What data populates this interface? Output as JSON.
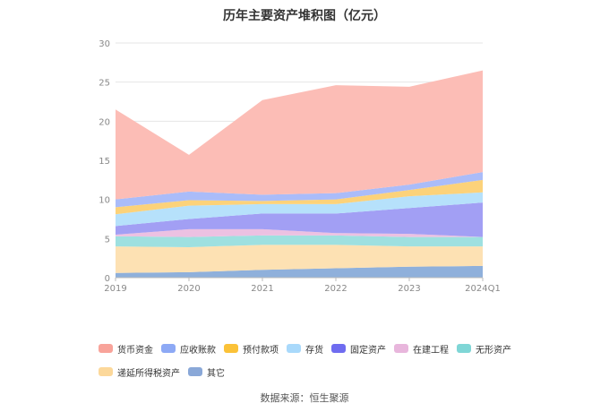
{
  "chart_data": {
    "type": "area",
    "stacked": true,
    "title": "历年主要资产堆积图（亿元）",
    "categories": [
      "2019",
      "2020",
      "2021",
      "2022",
      "2023",
      "2024Q1"
    ],
    "ylim": [
      0,
      30
    ],
    "yticks": [
      0,
      5,
      10,
      15,
      20,
      25,
      30
    ],
    "grid": true,
    "legend_position": "bottom",
    "series": [
      {
        "name": "其它",
        "color": "#8fb0db",
        "values": [
          0.6,
          0.7,
          1.0,
          1.2,
          1.4,
          1.5
        ]
      },
      {
        "name": "递延所得税资产",
        "color": "#fde1b3",
        "values": [
          3.4,
          3.2,
          3.2,
          3.0,
          2.6,
          2.5
        ]
      },
      {
        "name": "无形资产",
        "color": "#9ee0e0",
        "values": [
          1.3,
          1.3,
          1.2,
          1.2,
          1.2,
          1.2
        ]
      },
      {
        "name": "在建工程",
        "color": "#ecc1e2",
        "values": [
          0.2,
          1.0,
          0.8,
          0.3,
          0.4,
          0.0
        ]
      },
      {
        "name": "固定资产",
        "color": "#a29ff4",
        "values": [
          1.1,
          1.3,
          2.0,
          2.5,
          3.3,
          4.4
        ]
      },
      {
        "name": "存货",
        "color": "#b6e1fb",
        "values": [
          1.5,
          1.7,
          1.2,
          1.2,
          1.5,
          1.3
        ]
      },
      {
        "name": "预付款项",
        "color": "#fcd27a",
        "values": [
          0.9,
          0.7,
          0.4,
          0.6,
          0.8,
          1.6
        ]
      },
      {
        "name": "应收账款",
        "color": "#aabcf9",
        "values": [
          1.0,
          1.1,
          0.8,
          0.8,
          0.7,
          1.0
        ]
      },
      {
        "name": "货币资金",
        "color": "#fcbdb6",
        "values": [
          11.5,
          4.7,
          12.1,
          13.8,
          12.5,
          13.0
        ]
      }
    ]
  },
  "legend_order": [
    "货币资金",
    "应收账款",
    "预付款项",
    "存货",
    "固定资产",
    "在建工程",
    "无形资产",
    "递延所得税资产",
    "其它"
  ],
  "legend_colors": {
    "货币资金": "#f8a39a",
    "应收账款": "#8da9f5",
    "预付款项": "#fbc238",
    "存货": "#a9d9fb",
    "固定资产": "#6f6cf0",
    "在建工程": "#e8b6dc",
    "无形资产": "#7fd6d6",
    "递延所得税资产": "#fcd89a",
    "其它": "#8aa8d8"
  },
  "source": "数据来源：恒生聚源"
}
